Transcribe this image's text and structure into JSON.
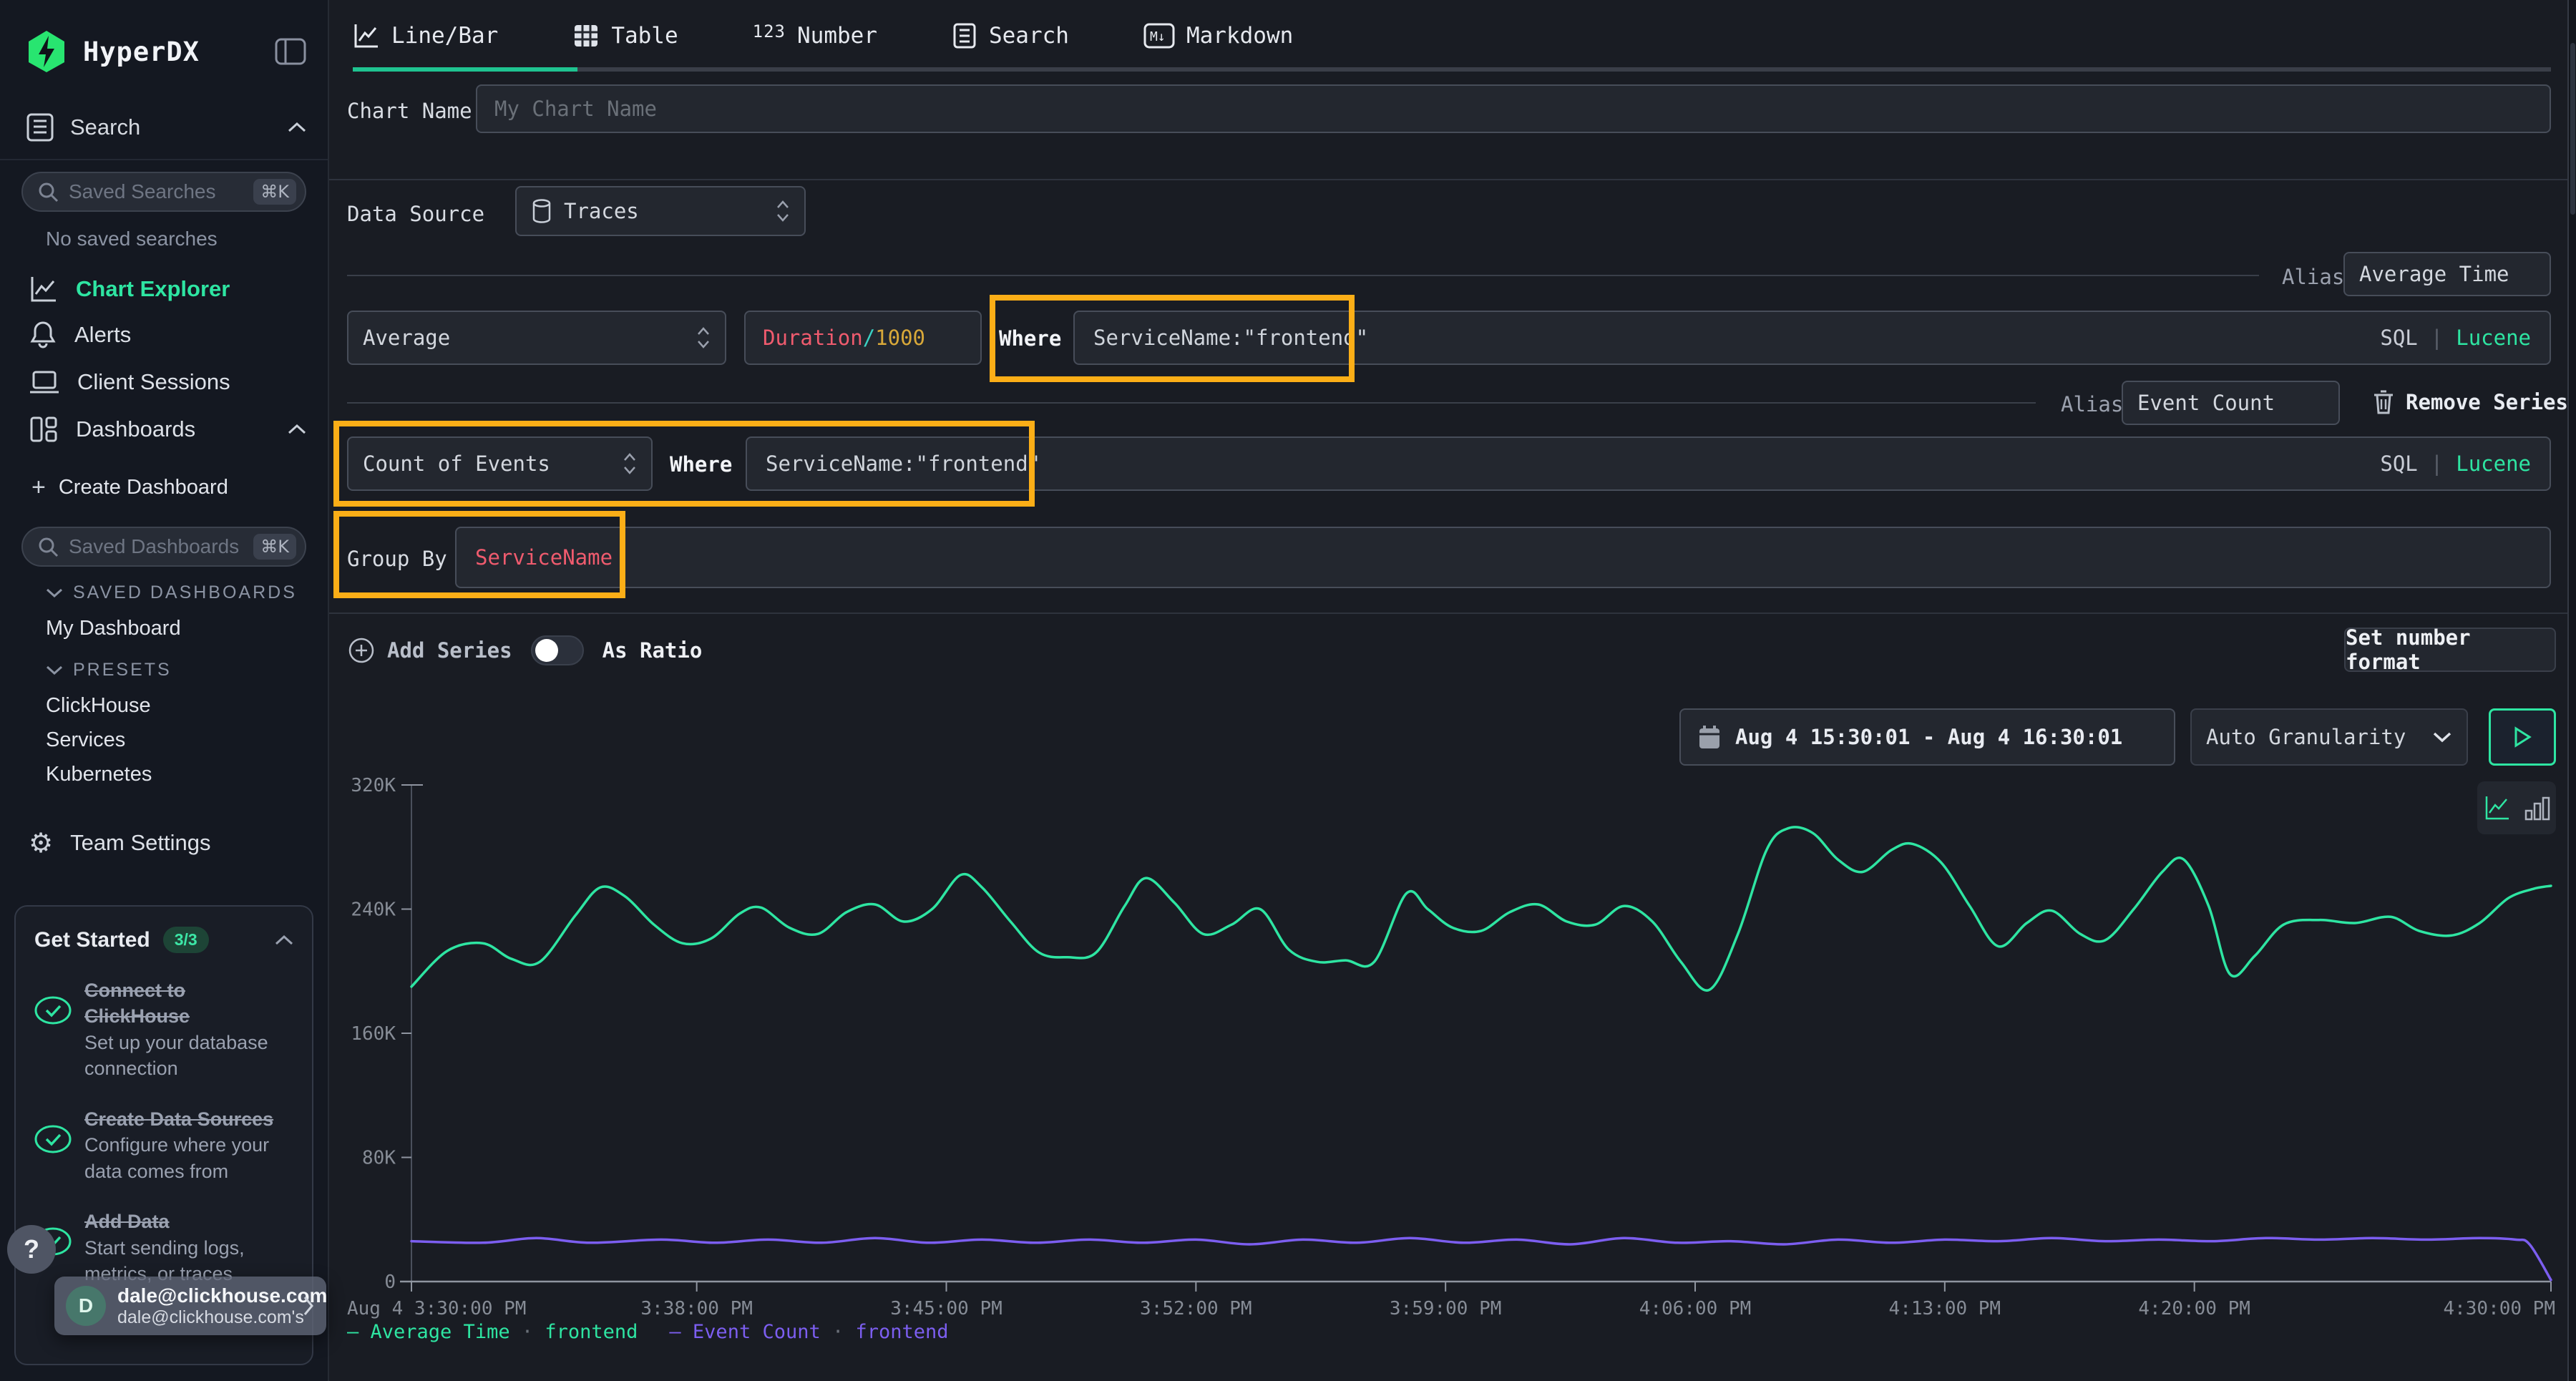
{
  "colors": {
    "accent": "#2ee5a2",
    "purple": "#7c5ef0",
    "highlight": "#fbae17",
    "code-red": "#ef5b6e",
    "code-yellow": "#d8a839",
    "code-teal": "#3ad0c3",
    "logo-green": "#28e570"
  },
  "icons": {
    "cmd_k": "⌘K",
    "help": "?",
    "plus": "+",
    "number_glyph": "123",
    "markdown_glyph": "M↓",
    "dot": "·"
  },
  "sidebar": {
    "brand": "HyperDX",
    "search_section": "Search",
    "saved_searches_placeholder": "Saved Searches",
    "no_saved": "No saved searches",
    "nav": {
      "chart_explorer": "Chart Explorer",
      "alerts": "Alerts",
      "client_sessions": "Client Sessions",
      "dashboards": "Dashboards"
    },
    "create_dashboard": "Create Dashboard",
    "saved_dashboards_placeholder": "Saved Dashboards",
    "saved_dashboards_header": "SAVED DASHBOARDS",
    "my_dashboard": "My Dashboard",
    "presets_header": "PRESETS",
    "presets": [
      "ClickHouse",
      "Services",
      "Kubernetes"
    ],
    "team_settings": "Team Settings",
    "get_started": {
      "title": "Get Started",
      "badge": "3/3",
      "items": [
        {
          "title": "Connect to ClickHouse",
          "desc": "Set up your database connection"
        },
        {
          "title": "Create Data Sources",
          "desc": "Configure where your data comes from"
        },
        {
          "title": "Add Data",
          "desc": "Start sending logs, metrics, or traces"
        }
      ]
    },
    "user": {
      "initial": "D",
      "email": "dale@clickhouse.com",
      "team": "dale@clickhouse.com's"
    }
  },
  "tabs": [
    {
      "label": "Line/Bar"
    },
    {
      "label": "Table"
    },
    {
      "label": "Number"
    },
    {
      "label": "Search"
    },
    {
      "label": "Markdown"
    }
  ],
  "form": {
    "chart_name_label": "Chart Name",
    "chart_name_placeholder": "My Chart Name",
    "data_source_label": "Data Source",
    "data_source_value": "Traces",
    "alias_label": "Alias",
    "sql_label": "SQL",
    "sql_sep": "|",
    "lucene_label": "Lucene",
    "series1": {
      "aggregation": "Average",
      "expr_field": "Duration",
      "expr_op": "/",
      "expr_value": "1000",
      "where_label": "Where",
      "where_value": "ServiceName:\"frontend\"",
      "alias": "Average Time"
    },
    "series2": {
      "aggregation": "Count of Events",
      "where_label": "Where",
      "where_value": "ServiceName:\"frontend\"",
      "alias": "Event Count",
      "remove": "Remove Series"
    },
    "group_by_label": "Group By",
    "group_by_value": "ServiceName",
    "add_series": "Add Series",
    "as_ratio": "As Ratio",
    "set_number_format": "Set number format"
  },
  "toolbar": {
    "time_range": "Aug 4 15:30:01 - Aug 4 16:30:01",
    "granularity": "Auto Granularity"
  },
  "chart_data": {
    "type": "line",
    "title": "",
    "xlabel": "",
    "ylabel": "",
    "x_max_min": 60,
    "y_max_k": 320,
    "ylim": [
      0,
      320000
    ],
    "grid": false,
    "legend_position": "bottom-left",
    "legend_dash": "—",
    "legend_dot": "·",
    "y_ticks": [
      {
        "v": 0,
        "label": "0"
      },
      {
        "v": 80,
        "label": "80K"
      },
      {
        "v": 160,
        "label": "160K"
      },
      {
        "v": 240,
        "label": "240K"
      },
      {
        "v": 320,
        "label": "320K"
      }
    ],
    "x_ticks": [
      {
        "m": 0,
        "label": "Aug 4 3:30:00 PM"
      },
      {
        "m": 8,
        "label": "3:38:00 PM"
      },
      {
        "m": 15,
        "label": "3:45:00 PM"
      },
      {
        "m": 22,
        "label": "3:52:00 PM"
      },
      {
        "m": 29,
        "label": "3:59:00 PM"
      },
      {
        "m": 36,
        "label": "4:06:00 PM"
      },
      {
        "m": 43,
        "label": "4:13:00 PM"
      },
      {
        "m": 50,
        "label": "4:20:00 PM"
      },
      {
        "m": 60,
        "label": "4:30:00 PM"
      }
    ],
    "series": [
      {
        "name": "Average Time",
        "scope": "frontend",
        "color": "#2ee5a2",
        "unit": "K",
        "points_k": [
          [
            0,
            190
          ],
          [
            1,
            213
          ],
          [
            2,
            218
          ],
          [
            2.8,
            208
          ],
          [
            3.6,
            206
          ],
          [
            4.6,
            236
          ],
          [
            5.3,
            254
          ],
          [
            6,
            248
          ],
          [
            6.8,
            230
          ],
          [
            7.6,
            218
          ],
          [
            8.4,
            221
          ],
          [
            9.2,
            237
          ],
          [
            9.8,
            241
          ],
          [
            10.6,
            228
          ],
          [
            11.4,
            224
          ],
          [
            12.2,
            238
          ],
          [
            13,
            243
          ],
          [
            13.8,
            232
          ],
          [
            14.6,
            240
          ],
          [
            15.4,
            262
          ],
          [
            16,
            254
          ],
          [
            16.8,
            232
          ],
          [
            17.6,
            212
          ],
          [
            18.4,
            209
          ],
          [
            19.2,
            212
          ],
          [
            20,
            242
          ],
          [
            20.6,
            260
          ],
          [
            21.4,
            244
          ],
          [
            22.2,
            224
          ],
          [
            23,
            230
          ],
          [
            23.8,
            240
          ],
          [
            24.6,
            214
          ],
          [
            25.4,
            206
          ],
          [
            26.2,
            207
          ],
          [
            27,
            206
          ],
          [
            27.9,
            250
          ],
          [
            28.5,
            240
          ],
          [
            29.2,
            228
          ],
          [
            30,
            226
          ],
          [
            30.8,
            238
          ],
          [
            31.6,
            243
          ],
          [
            32.4,
            232
          ],
          [
            33.2,
            230
          ],
          [
            34,
            242
          ],
          [
            34.8,
            232
          ],
          [
            35.6,
            206
          ],
          [
            36.4,
            188
          ],
          [
            37.2,
            224
          ],
          [
            38,
            278
          ],
          [
            38.6,
            292
          ],
          [
            39.3,
            289
          ],
          [
            40,
            272
          ],
          [
            40.7,
            264
          ],
          [
            41.5,
            278
          ],
          [
            42.1,
            282
          ],
          [
            42.9,
            270
          ],
          [
            43.7,
            242
          ],
          [
            44.5,
            216
          ],
          [
            45.3,
            231
          ],
          [
            46,
            239
          ],
          [
            46.8,
            224
          ],
          [
            47.5,
            220
          ],
          [
            48.3,
            240
          ],
          [
            49.1,
            264
          ],
          [
            49.7,
            272
          ],
          [
            50.4,
            242
          ],
          [
            51,
            198
          ],
          [
            51.7,
            210
          ],
          [
            52.5,
            230
          ],
          [
            53.5,
            233
          ],
          [
            54.5,
            231
          ],
          [
            55.5,
            235
          ],
          [
            56.3,
            226
          ],
          [
            57.2,
            223
          ],
          [
            58,
            231
          ],
          [
            58.8,
            247
          ],
          [
            59.5,
            253
          ],
          [
            60,
            255
          ]
        ]
      },
      {
        "name": "Event Count",
        "scope": "frontend",
        "color": "#7c5ef0",
        "unit": "K",
        "points_k": [
          [
            0,
            26
          ],
          [
            2,
            25
          ],
          [
            3.5,
            28
          ],
          [
            5,
            25
          ],
          [
            7,
            27
          ],
          [
            8.5,
            25
          ],
          [
            10,
            27
          ],
          [
            11.5,
            25
          ],
          [
            13,
            28
          ],
          [
            14.5,
            25
          ],
          [
            16,
            27
          ],
          [
            17.5,
            25
          ],
          [
            19,
            27
          ],
          [
            20.5,
            25
          ],
          [
            22,
            27
          ],
          [
            23.5,
            24
          ],
          [
            25,
            27
          ],
          [
            26.5,
            25
          ],
          [
            28,
            28
          ],
          [
            29.5,
            25
          ],
          [
            31,
            27
          ],
          [
            32.5,
            24
          ],
          [
            34,
            28
          ],
          [
            35.5,
            25
          ],
          [
            37,
            26
          ],
          [
            38.5,
            24
          ],
          [
            40,
            27
          ],
          [
            41.5,
            25
          ],
          [
            43,
            27
          ],
          [
            44.5,
            26
          ],
          [
            46,
            28
          ],
          [
            47.5,
            26
          ],
          [
            49,
            27
          ],
          [
            50.5,
            26
          ],
          [
            52,
            28
          ],
          [
            53.5,
            27
          ],
          [
            55,
            28
          ],
          [
            56.5,
            27
          ],
          [
            58,
            28
          ],
          [
            59,
            27
          ],
          [
            59.4,
            24
          ],
          [
            60,
            1
          ]
        ]
      }
    ]
  }
}
